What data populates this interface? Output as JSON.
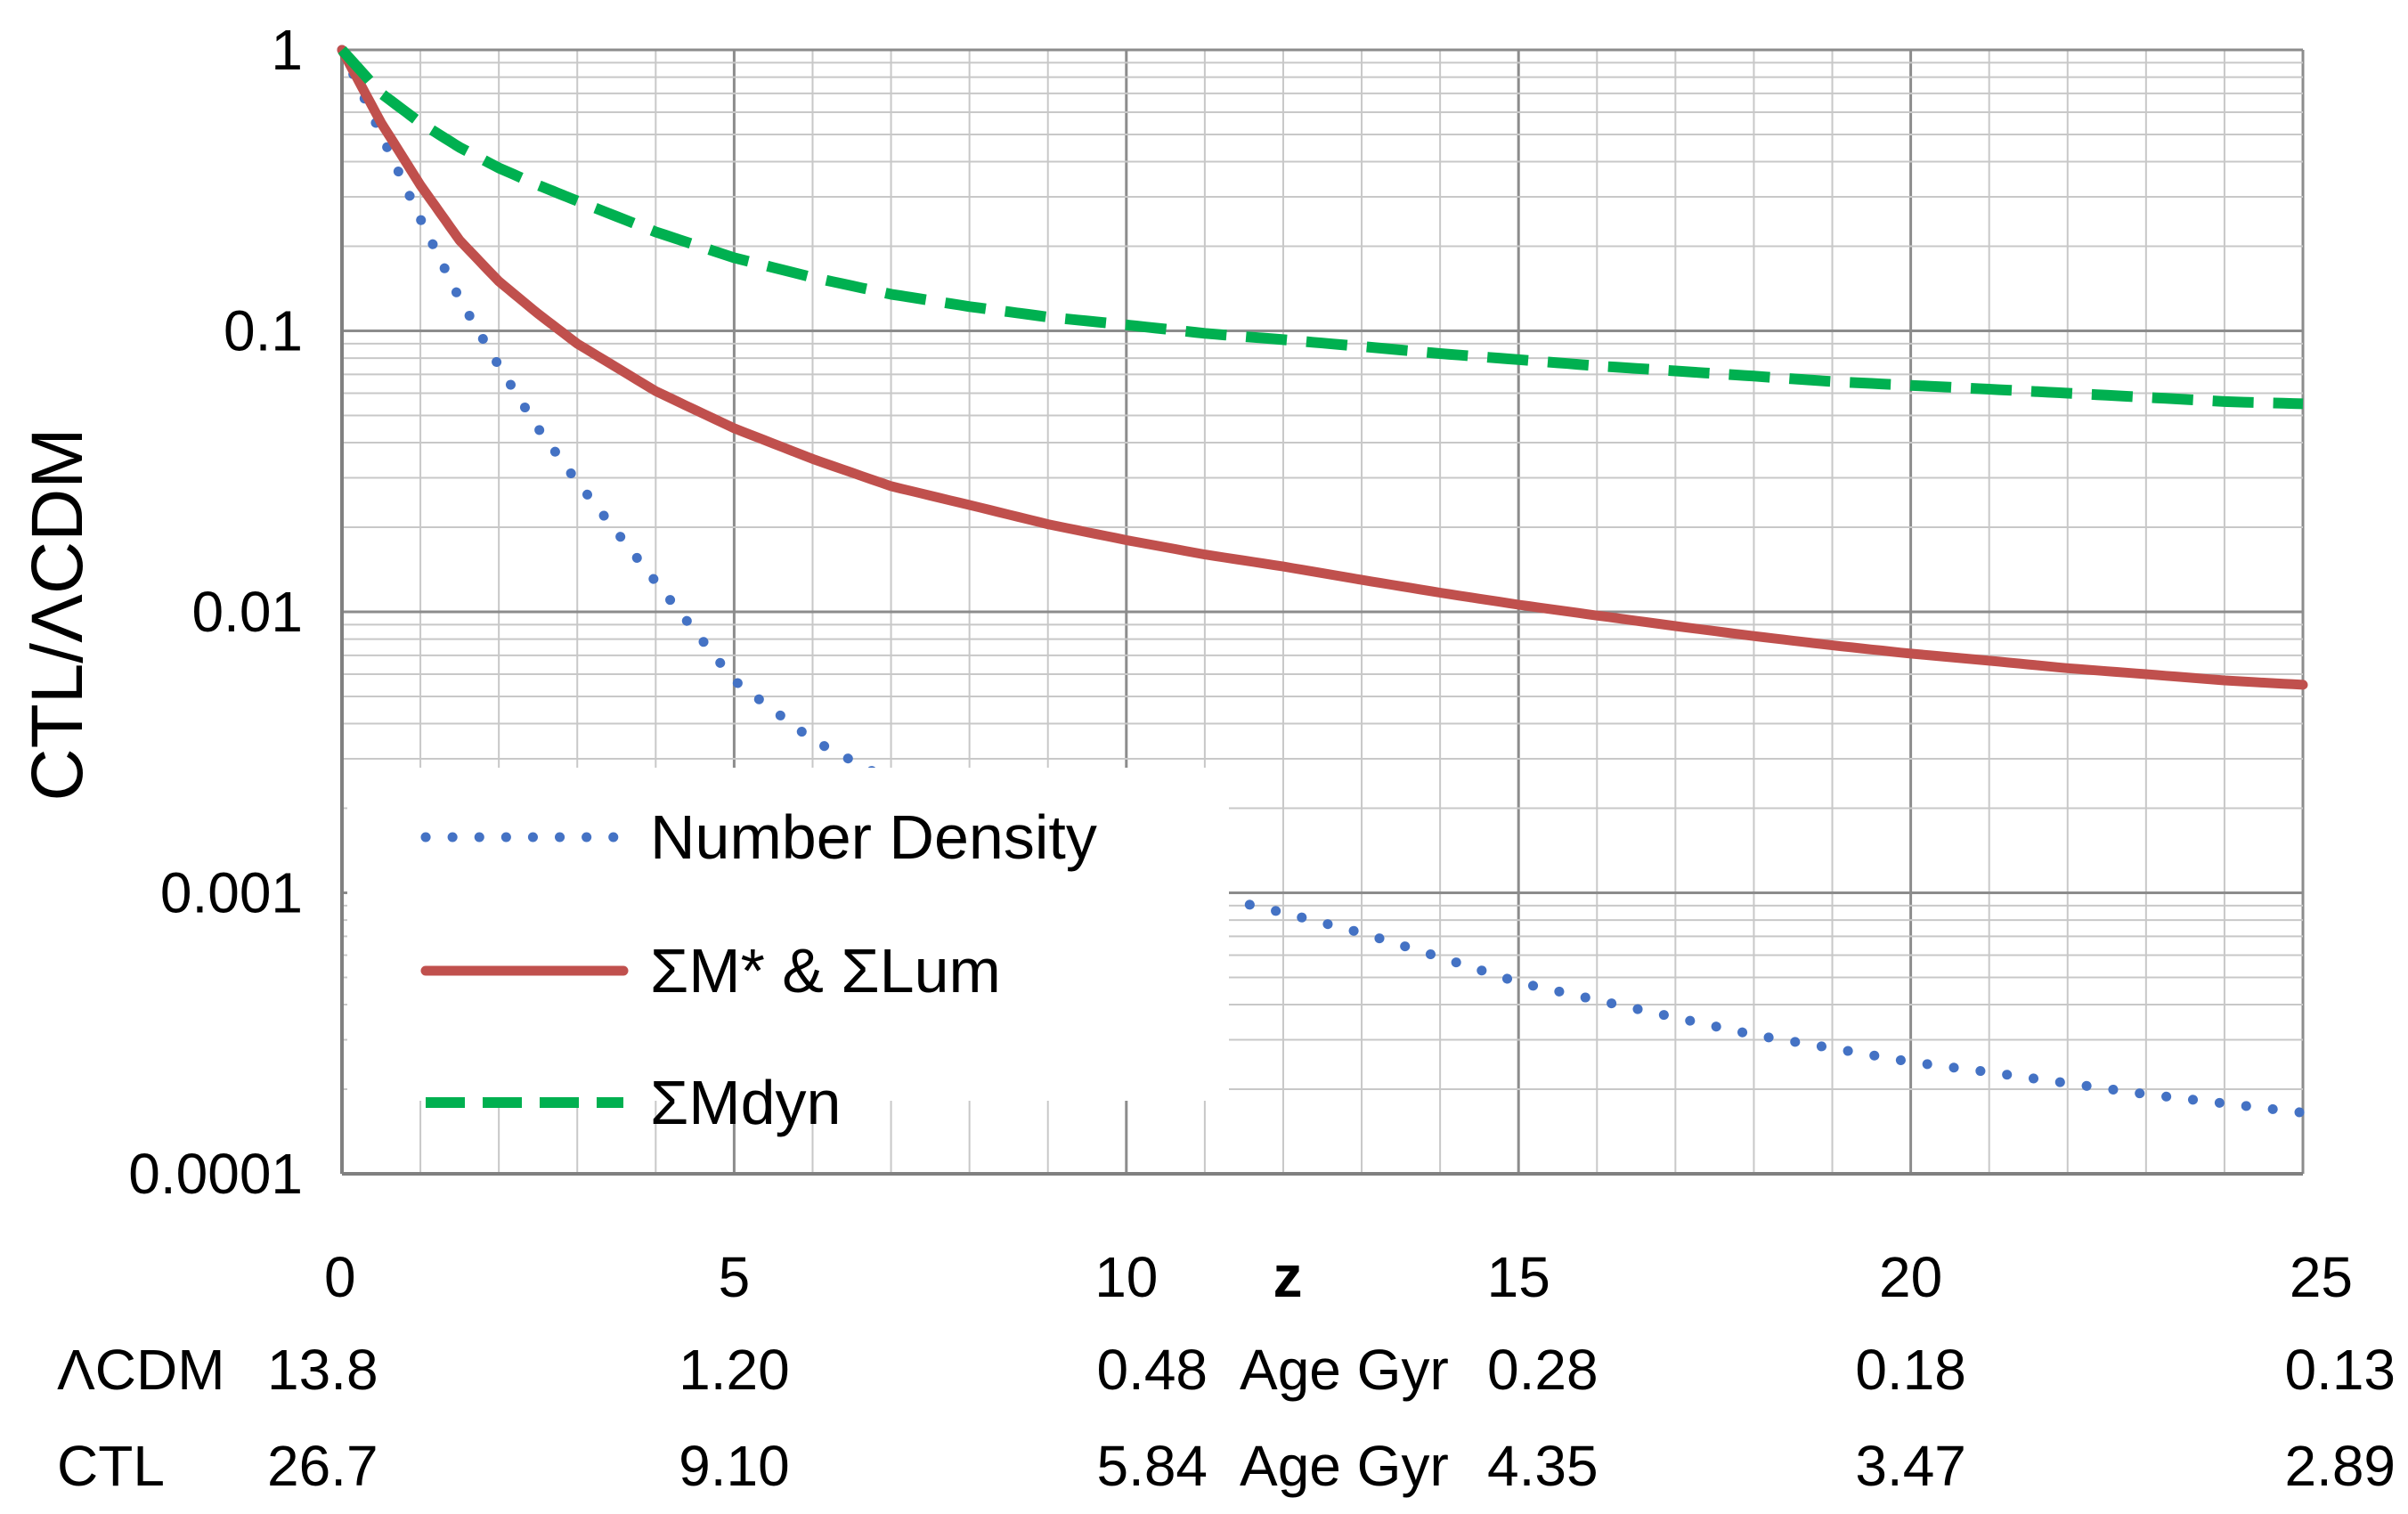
{
  "chart_data": {
    "type": "line",
    "title": "",
    "ylabel": "CTL/ΛCDM",
    "xlabel": "z",
    "x_scale": "linear",
    "y_scale": "log",
    "xlim": [
      0,
      25
    ],
    "ylim": [
      0.0001,
      1
    ],
    "x_ticks": [
      0,
      5,
      10,
      15,
      20,
      25
    ],
    "y_ticks": [
      {
        "value": 1,
        "label": "1"
      },
      {
        "value": 0.1,
        "label": "0.1"
      },
      {
        "value": 0.01,
        "label": "0.01"
      },
      {
        "value": 0.001,
        "label": "0.001"
      },
      {
        "value": 0.0001,
        "label": "0.0001"
      }
    ],
    "grid": true,
    "legend_position": "lower-left",
    "series": [
      {
        "name": "Number Density",
        "style": "dotted",
        "color": "#4472C4",
        "x": [
          0,
          0.5,
          1,
          1.5,
          2,
          2.5,
          3,
          4,
          5,
          6,
          7,
          8,
          9,
          10,
          11,
          12,
          13,
          14,
          15,
          16,
          17,
          18,
          19,
          20,
          21,
          22,
          23,
          24,
          25
        ],
        "y": [
          1,
          0.5,
          0.25,
          0.13,
          0.075,
          0.045,
          0.029,
          0.0128,
          0.0057,
          0.0035,
          0.0025,
          0.00186,
          0.00145,
          0.00118,
          0.00099,
          0.00085,
          0.00072,
          0.00059,
          0.00048,
          0.000415,
          0.00036,
          0.000312,
          0.00028,
          0.00025,
          0.00023,
          0.00021,
          0.000192,
          0.000178,
          0.000165
        ]
      },
      {
        "name": "ΣM* & ΣLum",
        "style": "solid",
        "color": "#C0504D",
        "x": [
          0,
          0.5,
          1,
          1.5,
          2,
          2.5,
          3,
          4,
          5,
          6,
          7,
          8,
          9,
          10,
          11,
          12,
          13,
          14,
          15,
          16,
          17,
          18,
          19,
          20,
          21,
          22,
          23,
          24,
          25
        ],
        "y": [
          1,
          0.55,
          0.33,
          0.21,
          0.15,
          0.115,
          0.09,
          0.061,
          0.045,
          0.035,
          0.028,
          0.024,
          0.0205,
          0.018,
          0.016,
          0.0145,
          0.013,
          0.0117,
          0.0106,
          0.0097,
          0.0089,
          0.0082,
          0.0076,
          0.0071,
          0.0067,
          0.0063,
          0.006,
          0.0057,
          0.0055
        ]
      },
      {
        "name": "ΣMdyn",
        "style": "dashed",
        "color": "#00B050",
        "x": [
          0,
          0.5,
          1,
          1.5,
          2,
          2.5,
          3,
          4,
          5,
          6,
          7,
          8,
          9,
          10,
          11,
          12,
          13,
          14,
          15,
          16,
          17,
          18,
          19,
          20,
          21,
          22,
          23,
          24,
          25
        ],
        "y": [
          1,
          0.7,
          0.55,
          0.45,
          0.38,
          0.33,
          0.29,
          0.225,
          0.182,
          0.155,
          0.135,
          0.122,
          0.112,
          0.105,
          0.098,
          0.093,
          0.088,
          0.083,
          0.079,
          0.075,
          0.072,
          0.069,
          0.066,
          0.064,
          0.062,
          0.06,
          0.058,
          0.056,
          0.055
        ]
      }
    ],
    "secondary_x_rows": [
      {
        "label": "ΛCDM",
        "age_label": "Age Gyr",
        "values": [
          {
            "x": 0,
            "text": "13.8"
          },
          {
            "x": 5,
            "text": "1.20"
          },
          {
            "x": 10,
            "text": "0.48"
          },
          {
            "x": 15,
            "text": "0.28"
          },
          {
            "x": 20,
            "text": "0.18"
          },
          {
            "x": 25,
            "text": "0.13"
          }
        ]
      },
      {
        "label": "CTL",
        "age_label": "Age Gyr",
        "values": [
          {
            "x": 0,
            "text": "26.7"
          },
          {
            "x": 5,
            "text": "9.10"
          },
          {
            "x": 10,
            "text": "5.84"
          },
          {
            "x": 15,
            "text": "4.35"
          },
          {
            "x": 20,
            "text": "3.47"
          },
          {
            "x": 25,
            "text": "2.89"
          }
        ]
      }
    ]
  }
}
